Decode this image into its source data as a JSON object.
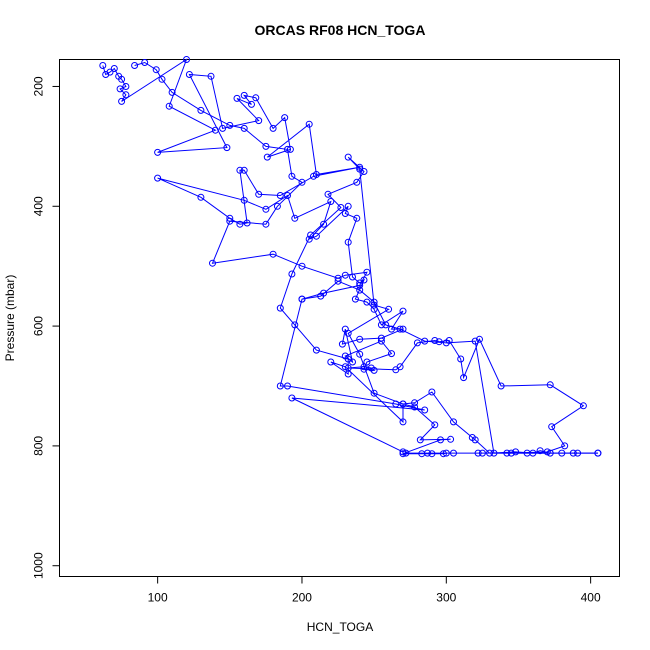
{
  "chart_data": {
    "type": "line",
    "title": "ORCAS RF08 HCN_TOGA",
    "xlabel": "HCN_TOGA",
    "ylabel": "Pressure (mbar)",
    "xlim": [
      32,
      420
    ],
    "ylim": [
      1018,
      155
    ],
    "y_reversed": true,
    "grid": false,
    "xticks": [
      100,
      200,
      300,
      400
    ],
    "yticks": [
      200,
      400,
      600,
      800,
      1000
    ],
    "series_color": "#0000ff",
    "series": [
      {
        "points": [
          [
            62,
            165
          ],
          [
            64,
            180
          ],
          [
            67,
            176
          ],
          [
            70,
            170
          ],
          [
            73,
            183
          ],
          [
            75,
            188
          ],
          [
            78,
            200
          ],
          [
            74,
            204
          ],
          [
            78,
            214
          ],
          [
            75,
            225
          ],
          [
            120,
            155
          ],
          [
            108,
            233
          ],
          [
            140,
            273
          ],
          [
            100,
            310
          ],
          [
            148,
            302
          ],
          [
            122,
            180
          ],
          [
            137,
            183
          ],
          [
            145,
            270
          ],
          [
            170,
            257
          ],
          [
            155,
            220
          ],
          [
            165,
            230
          ],
          [
            160,
            215
          ],
          [
            168,
            219
          ],
          [
            180,
            270
          ],
          [
            188,
            252
          ],
          [
            192,
            305
          ],
          [
            176,
            318
          ],
          [
            205,
            263
          ],
          [
            210,
            347
          ],
          [
            240,
            335
          ],
          [
            208,
            350
          ],
          [
            185,
            382
          ],
          [
            170,
            380
          ],
          [
            160,
            340
          ],
          [
            157,
            340
          ],
          [
            162,
            428
          ],
          [
            157,
            430
          ],
          [
            150,
            420
          ],
          [
            130,
            385
          ],
          [
            100,
            353
          ],
          [
            160,
            390
          ],
          [
            175,
            405
          ],
          [
            190,
            382
          ],
          [
            195,
            420
          ],
          [
            220,
            392
          ],
          [
            215,
            430
          ],
          [
            205,
            455
          ],
          [
            210,
            450
          ],
          [
            232,
            400
          ],
          [
            230,
            412
          ],
          [
            238,
            420
          ],
          [
            232,
            460
          ],
          [
            235,
            518
          ],
          [
            240,
            528
          ],
          [
            243,
            523
          ],
          [
            237,
            555
          ],
          [
            245,
            560
          ],
          [
            250,
            572
          ],
          [
            255,
            598
          ],
          [
            270,
            575
          ],
          [
            262,
            605
          ],
          [
            270,
            605
          ],
          [
            255,
            620
          ],
          [
            240,
            622
          ],
          [
            228,
            630
          ],
          [
            230,
            605
          ],
          [
            235,
            660
          ],
          [
            230,
            650
          ],
          [
            255,
            625
          ],
          [
            262,
            646
          ],
          [
            245,
            660
          ],
          [
            243,
            672
          ],
          [
            250,
            674
          ],
          [
            248,
            670
          ],
          [
            243,
            668
          ],
          [
            232,
            670
          ],
          [
            265,
            673
          ],
          [
            268,
            668
          ],
          [
            280,
            628
          ],
          [
            292,
            624
          ],
          [
            295,
            626
          ],
          [
            302,
            624
          ],
          [
            310,
            655
          ],
          [
            312,
            686
          ],
          [
            323,
            622
          ],
          [
            338,
            700
          ],
          [
            372,
            698
          ],
          [
            395,
            733
          ],
          [
            373,
            768
          ],
          [
            382,
            800
          ],
          [
            370,
            810
          ],
          [
            342,
            812
          ],
          [
            325,
            812
          ],
          [
            300,
            812
          ],
          [
            298,
            813
          ],
          [
            290,
            813
          ],
          [
            283,
            813
          ],
          [
            270,
            813
          ],
          [
            296,
            790
          ],
          [
            303,
            789
          ],
          [
            282,
            790
          ],
          [
            292,
            765
          ],
          [
            278,
            735
          ],
          [
            270,
            730
          ],
          [
            270,
            760
          ],
          [
            230,
            668
          ],
          [
            220,
            660
          ],
          [
            232,
            680
          ],
          [
            232,
            655
          ],
          [
            210,
            640
          ],
          [
            195,
            598
          ],
          [
            185,
            570
          ],
          [
            193,
            513
          ],
          [
            206,
            448
          ],
          [
            227,
            402
          ],
          [
            218,
            380
          ],
          [
            238,
            360
          ],
          [
            243,
            342
          ],
          [
            232,
            318
          ],
          [
            240,
            338
          ],
          [
            250,
            565
          ],
          [
            260,
            572
          ],
          [
            232,
            612
          ],
          [
            240,
            647
          ],
          [
            250,
            712
          ],
          [
            270,
            730
          ],
          [
            278,
            728
          ],
          [
            290,
            710
          ],
          [
            305,
            760
          ],
          [
            318,
            786
          ],
          [
            320,
            790
          ],
          [
            330,
            812
          ],
          [
            348,
            810
          ],
          [
            360,
            812
          ],
          [
            365,
            808
          ],
          [
            372,
            812
          ],
          [
            380,
            812
          ],
          [
            388,
            812
          ],
          [
            405,
            812
          ],
          [
            345,
            812
          ],
          [
            322,
            812
          ],
          [
            305,
            812
          ],
          [
            287,
            812
          ],
          [
            272,
            812
          ]
        ]
      },
      {
        "points": [
          [
            84,
            165
          ],
          [
            91,
            160
          ],
          [
            99,
            172
          ],
          [
            103,
            188
          ],
          [
            110,
            210
          ],
          [
            130,
            240
          ],
          [
            150,
            265
          ],
          [
            160,
            270
          ],
          [
            175,
            300
          ],
          [
            190,
            305
          ],
          [
            193,
            350
          ],
          [
            200,
            360
          ],
          [
            183,
            400
          ],
          [
            175,
            430
          ],
          [
            150,
            425
          ],
          [
            138,
            495
          ],
          [
            180,
            480
          ],
          [
            200,
            500
          ],
          [
            225,
            520
          ],
          [
            230,
            515
          ],
          [
            245,
            510
          ],
          [
            240,
            532
          ],
          [
            215,
            545
          ],
          [
            200,
            555
          ],
          [
            185,
            700
          ],
          [
            190,
            700
          ],
          [
            265,
            730
          ],
          [
            285,
            740
          ],
          [
            193,
            720
          ],
          [
            270,
            810
          ]
        ]
      },
      {
        "points": [
          [
            200,
            555
          ],
          [
            213,
            550
          ],
          [
            225,
            525
          ],
          [
            240,
            540
          ],
          [
            250,
            560
          ],
          [
            258,
            598
          ],
          [
            268,
            605
          ],
          [
            285,
            625
          ],
          [
            300,
            628
          ],
          [
            320,
            625
          ],
          [
            333,
            812
          ],
          [
            356,
            812
          ],
          [
            391,
            812
          ],
          [
            405,
            812
          ]
        ]
      }
    ]
  }
}
